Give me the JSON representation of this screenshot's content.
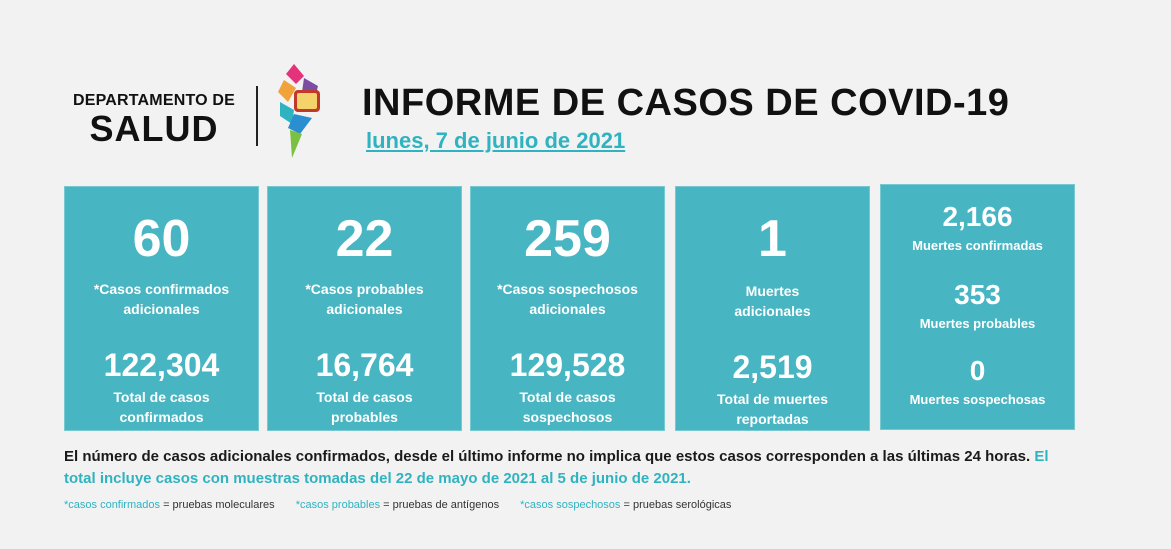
{
  "header": {
    "dept_line1": "DEPARTAMENTO DE",
    "dept_line2": "SALUD",
    "title": "INFORME DE CASOS DE COVID-19",
    "date": "lunes, 7 de junio de 2021"
  },
  "cards": [
    {
      "big": "60",
      "label1": "*Casos confirmados",
      "label2": "adicionales",
      "total": "122,304",
      "total_label1": "Total de casos",
      "total_label2": "confirmados"
    },
    {
      "big": "22",
      "label1": "*Casos probables",
      "label2": "adicionales",
      "total": "16,764",
      "total_label1": "Total de casos",
      "total_label2": "probables"
    },
    {
      "big": "259",
      "label1": "*Casos sospechosos",
      "label2": "adicionales",
      "total": "129,528",
      "total_label1": "Total de casos",
      "total_label2": "sospechosos"
    },
    {
      "big": "1",
      "label1": "Muertes",
      "label2": "adicionales",
      "total": "2,519",
      "total_label1": "Total de muertes",
      "total_label2": "reportadas"
    }
  ],
  "deaths": [
    {
      "value": "2,166",
      "label": "Muertes confirmadas"
    },
    {
      "value": "353",
      "label": "Muertes probables"
    },
    {
      "value": "0",
      "label": "Muertes sospechosas"
    }
  ],
  "note": {
    "text": "El número de casos adicionales confirmados, desde el último informe no implica que estos casos corresponden a las últimas 24 horas.",
    "highlight": "El total incluye casos con muestras tomadas del 22 de mayo de 2021 al 5 de junio de 2021."
  },
  "legend": [
    {
      "key": "*casos confirmados",
      "value": "= pruebas moleculares"
    },
    {
      "key": "*casos probables",
      "value": "= pruebas de antígenos"
    },
    {
      "key": "*casos sospechosos",
      "value": "= pruebas serológicas"
    }
  ],
  "colors": {
    "card": "#48b5c2",
    "accent": "#2fb3c0",
    "background": "#f2f2f2"
  }
}
